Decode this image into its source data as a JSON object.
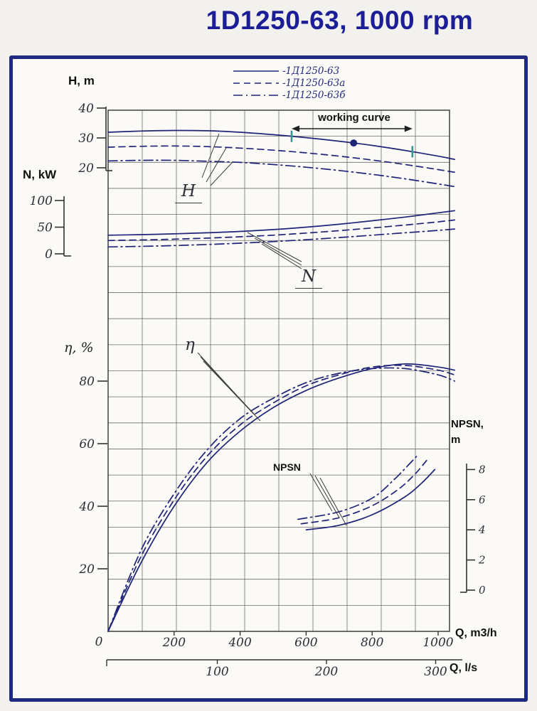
{
  "chart_data": {
    "type": "line",
    "title": "1D1250-63, 1000 rpm",
    "x_axis": {
      "label": "Q, m3/h",
      "ticks": [
        0,
        200,
        400,
        600,
        800,
        1000
      ],
      "range": [
        0,
        1050
      ]
    },
    "x_axis_secondary": {
      "label": "Q, l/s",
      "ticks": [
        100,
        200,
        300
      ]
    },
    "y_axes": {
      "H": {
        "label": "H, m",
        "ticks": [
          20,
          30,
          40
        ],
        "range": [
          20,
          40
        ]
      },
      "N": {
        "label": "N, kW",
        "ticks": [
          0,
          50,
          100
        ],
        "range": [
          0,
          100
        ]
      },
      "eta": {
        "label": "η, %",
        "ticks": [
          20,
          40,
          60,
          80
        ],
        "range": [
          0,
          90
        ]
      },
      "npsn": {
        "label": "NPSN,\nm",
        "ticks": [
          0,
          2,
          4,
          6,
          8
        ],
        "range": [
          0,
          9
        ]
      }
    },
    "legend": [
      {
        "style": "solid",
        "label": "-1Д1250-63"
      },
      {
        "style": "dashed",
        "label": "-1Д1250-63а"
      },
      {
        "style": "dashdot",
        "label": "-1Д1250-63б"
      }
    ],
    "annotations": {
      "working_curve": "working curve",
      "h": "H",
      "n": "N",
      "eta": "η",
      "npsn": "NPSN"
    },
    "working_range": {
      "q_start": 556,
      "q_end": 922
    },
    "duty_point": {
      "q": 744,
      "h": 28.3
    },
    "q": [
      0,
      100,
      200,
      300,
      400,
      500,
      600,
      700,
      800,
      900,
      1000,
      1050
    ],
    "series": {
      "H": [
        {
          "style": "solid",
          "name": "1Д1250-63",
          "values": [
            31.9,
            32.3,
            32.5,
            32.4,
            31.9,
            31.1,
            30.1,
            28.9,
            27.5,
            25.8,
            23.9,
            22.8
          ]
        },
        {
          "style": "dashed",
          "name": "1Д1250-63а",
          "values": [
            26.9,
            27.2,
            27.3,
            27.1,
            26.6,
            25.9,
            25.0,
            23.9,
            22.6,
            21.1,
            19.4,
            18.5
          ]
        },
        {
          "style": "dashdot",
          "name": "1Д1250-63б",
          "values": [
            22.3,
            22.5,
            22.5,
            22.2,
            21.8,
            21.1,
            20.2,
            19.1,
            17.8,
            16.3,
            14.6,
            13.7
          ]
        }
      ],
      "N": [
        {
          "style": "solid",
          "name": "1Д1250-63",
          "values": [
            35,
            36,
            37.5,
            39.5,
            42,
            45.5,
            50,
            55.5,
            62,
            69,
            77,
            81
          ]
        },
        {
          "style": "dashed",
          "name": "1Д1250-63а",
          "values": [
            25,
            26,
            27.5,
            29.5,
            32,
            35,
            39,
            43.5,
            48.5,
            54,
            60,
            63.5
          ]
        },
        {
          "style": "dashdot",
          "name": "1Д1250-63б",
          "values": [
            13,
            14,
            15.5,
            17.5,
            20,
            23,
            26.5,
            30.5,
            35,
            39.5,
            44,
            46.5
          ]
        }
      ],
      "eta": [
        {
          "style": "solid",
          "name": "1Д1250-63",
          "values": [
            0,
            22,
            40,
            54,
            64,
            71.5,
            77,
            81,
            84,
            85.5,
            84.5,
            83.5
          ]
        },
        {
          "style": "dashed",
          "name": "1Д1250-63а",
          "values": [
            0,
            24,
            42,
            56,
            66,
            73,
            78.5,
            82,
            84.5,
            85,
            83.5,
            82
          ]
        },
        {
          "style": "dashdot",
          "name": "1Д1250-63б",
          "values": [
            0,
            26,
            44,
            58,
            68,
            74.5,
            79.5,
            82.5,
            84,
            84,
            82,
            80
          ]
        }
      ],
      "npsn": [
        {
          "style": "solid",
          "name": "1Д1250-63",
          "q": [
            600,
            700,
            800,
            900,
            950,
            990
          ],
          "values": [
            4.0,
            4.3,
            5.0,
            6.2,
            7.1,
            8.0
          ]
        },
        {
          "style": "dashed",
          "name": "1Д1250-63а",
          "q": [
            585,
            700,
            800,
            880,
            930,
            965
          ],
          "values": [
            4.4,
            4.8,
            5.6,
            6.7,
            7.7,
            8.6
          ]
        },
        {
          "style": "dashdot",
          "name": "1Д1250-63б",
          "q": [
            575,
            700,
            800,
            865,
            910,
            940
          ],
          "values": [
            4.7,
            5.2,
            6.1,
            7.3,
            8.3,
            9.0
          ]
        }
      ]
    },
    "colors": {
      "curve": "#1e2478",
      "grid": "#4a4a4a",
      "teal": "#37948f",
      "ink": "#333333",
      "frame": "#1d2a80",
      "title": "#1b1e96"
    }
  }
}
